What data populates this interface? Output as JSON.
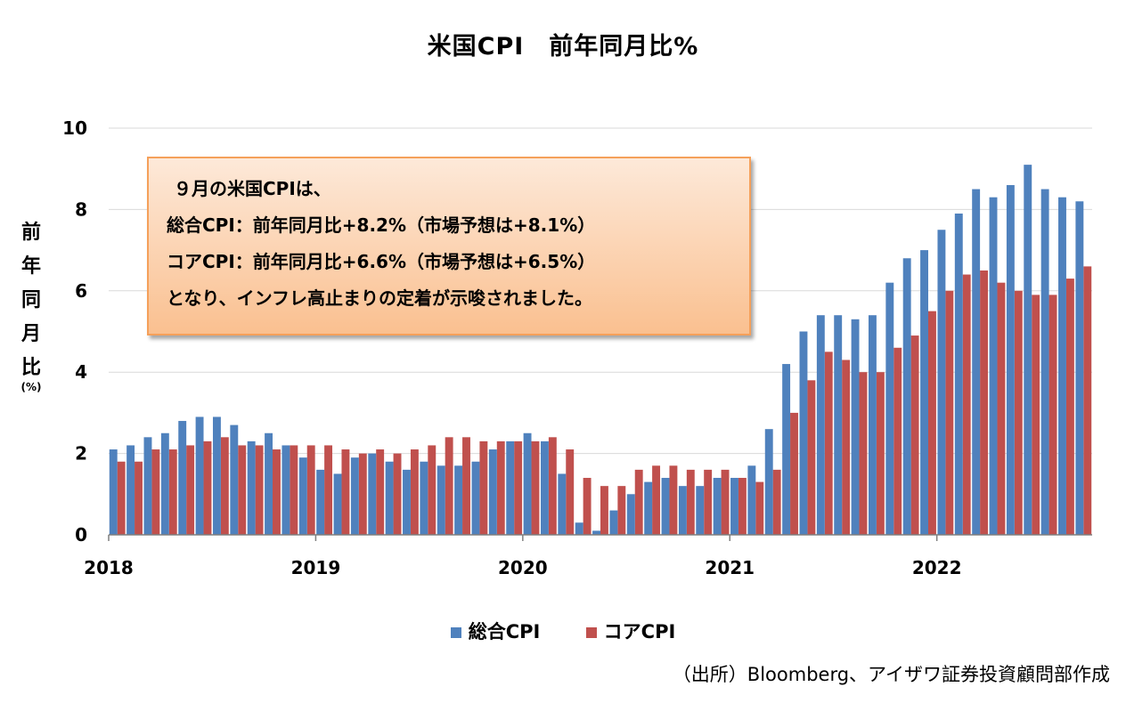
{
  "title": "米国CPI　前年同月比%",
  "ylabel_chars": [
    "前",
    "年",
    "同",
    "月",
    "比"
  ],
  "ylabel_unit": "(%)",
  "annotation": {
    "lines": [
      "９月の米国CPIは、",
      "総合CPI：前年同月比+8.2%（市場予想は+8.1%）",
      "コアCPI：前年同月比+6.6%（市場予想は+6.5%）",
      "となり、インフレ高止まりの定着が示唆されました。"
    ]
  },
  "source": "（出所）Bloomberg、アイザワ証券投資顧問部作成",
  "chart_data": {
    "type": "bar",
    "ylim": [
      0,
      10
    ],
    "y_ticks": [
      0,
      2,
      4,
      6,
      8,
      10
    ],
    "x_tick_labels": [
      "2018",
      "2019",
      "2020",
      "2021",
      "2022"
    ],
    "grid": true,
    "legend_position": "bottom",
    "months": [
      "2018-01",
      "2018-02",
      "2018-03",
      "2018-04",
      "2018-05",
      "2018-06",
      "2018-07",
      "2018-08",
      "2018-09",
      "2018-10",
      "2018-11",
      "2018-12",
      "2019-01",
      "2019-02",
      "2019-03",
      "2019-04",
      "2019-05",
      "2019-06",
      "2019-07",
      "2019-08",
      "2019-09",
      "2019-10",
      "2019-11",
      "2019-12",
      "2020-01",
      "2020-02",
      "2020-03",
      "2020-04",
      "2020-05",
      "2020-06",
      "2020-07",
      "2020-08",
      "2020-09",
      "2020-10",
      "2020-11",
      "2020-12",
      "2021-01",
      "2021-02",
      "2021-03",
      "2021-04",
      "2021-05",
      "2021-06",
      "2021-07",
      "2021-08",
      "2021-09",
      "2021-10",
      "2021-11",
      "2021-12",
      "2022-01",
      "2022-02",
      "2022-03",
      "2022-04",
      "2022-05",
      "2022-06",
      "2022-07",
      "2022-08",
      "2022-09"
    ],
    "series": [
      {
        "name": "総合CPI",
        "color": "#4f81bd",
        "values": [
          2.1,
          2.2,
          2.4,
          2.5,
          2.8,
          2.9,
          2.9,
          2.7,
          2.3,
          2.5,
          2.2,
          1.9,
          1.6,
          1.5,
          1.9,
          2.0,
          1.8,
          1.6,
          1.8,
          1.7,
          1.7,
          1.8,
          2.1,
          2.3,
          2.5,
          2.3,
          1.5,
          0.3,
          0.1,
          0.6,
          1.0,
          1.3,
          1.4,
          1.2,
          1.2,
          1.4,
          1.4,
          1.7,
          2.6,
          4.2,
          5.0,
          5.4,
          5.4,
          5.3,
          5.4,
          6.2,
          6.8,
          7.0,
          7.5,
          7.9,
          8.5,
          8.3,
          8.6,
          9.1,
          8.5,
          8.3,
          8.2
        ]
      },
      {
        "name": "コアCPI",
        "color": "#c0504d",
        "values": [
          1.8,
          1.8,
          2.1,
          2.1,
          2.2,
          2.3,
          2.4,
          2.2,
          2.2,
          2.1,
          2.2,
          2.2,
          2.2,
          2.1,
          2.0,
          2.1,
          2.0,
          2.1,
          2.2,
          2.4,
          2.4,
          2.3,
          2.3,
          2.3,
          2.3,
          2.4,
          2.1,
          1.4,
          1.2,
          1.2,
          1.6,
          1.7,
          1.7,
          1.6,
          1.6,
          1.6,
          1.4,
          1.3,
          1.6,
          3.0,
          3.8,
          4.5,
          4.3,
          4.0,
          4.0,
          4.6,
          4.9,
          5.5,
          6.0,
          6.4,
          6.5,
          6.2,
          6.0,
          5.9,
          5.9,
          6.3,
          6.6
        ]
      }
    ]
  }
}
